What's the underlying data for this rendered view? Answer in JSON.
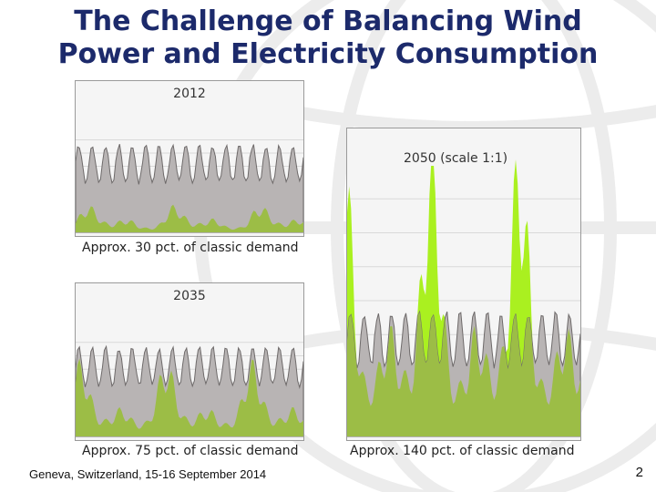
{
  "slide": {
    "title_line1": "The Challenge of Balancing Wind",
    "title_line2": "Power and Electricity Consumption",
    "footer": "Geneva, Switzerland, 15-16 September 2014",
    "page_number": "2"
  },
  "panels": [
    {
      "id": "p2012",
      "label": "2012",
      "caption": "Approx. 30 pct. of classic demand",
      "wind_share": 0.3
    },
    {
      "id": "p2035",
      "label": "2035",
      "caption": "Approx. 75 pct. of classic demand",
      "wind_share": 0.75
    },
    {
      "id": "p2050",
      "label": "2050 (scale 1:1)",
      "caption": "Approx. 140 pct. of classic demand",
      "wind_share": 1.4
    }
  ],
  "colors": {
    "title": "#1c2a6b",
    "demand_fill": "#b8b4b4",
    "demand_stroke": "#6e6a6a",
    "wind_excess": "#aaf020",
    "wind_base": "#9cbd46",
    "grid": "#d9d9d9"
  }
}
